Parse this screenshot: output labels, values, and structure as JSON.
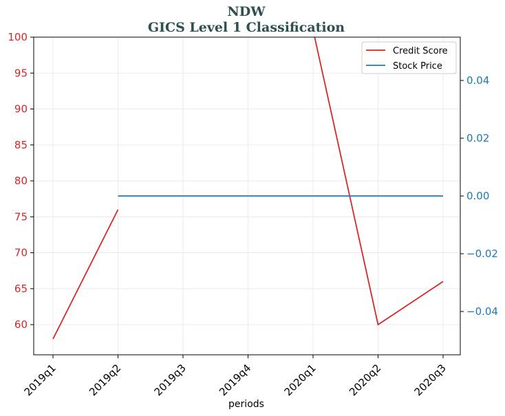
{
  "chart_data": {
    "type": "line",
    "title": "NDW",
    "subtitle": "GICS Level 1 Classification",
    "xlabel": "periods",
    "categories": [
      "2019q1",
      "2019q2",
      "2019q3",
      "2019q4",
      "2020q1",
      "2020q2",
      "2020q3"
    ],
    "left_axis": {
      "ylim": [
        55.8,
        100
      ],
      "ticks": [
        60,
        65,
        70,
        75,
        80,
        85,
        90,
        95,
        100
      ],
      "tick_labels": [
        "60",
        "65",
        "70",
        "75",
        "80",
        "85",
        "90",
        "95",
        "100"
      ],
      "color": "#d62728"
    },
    "right_axis": {
      "ylim": [
        -0.055,
        0.055
      ],
      "ticks": [
        -0.04,
        -0.02,
        0.0,
        0.02,
        0.04
      ],
      "tick_labels": [
        "−0.04",
        "−0.02",
        "0.00",
        "0.02",
        "0.04"
      ],
      "color": "#1f77b4"
    },
    "series": [
      {
        "name": "Credit Score",
        "axis": "left",
        "color": "#d62728",
        "values": [
          58,
          76,
          null,
          null,
          101,
          60,
          66
        ]
      },
      {
        "name": "Stock Price",
        "axis": "right",
        "color": "#1f77b4",
        "values": [
          null,
          0.0,
          0.0,
          0.0,
          0.0,
          0.0,
          0.0
        ]
      }
    ],
    "grid": true,
    "legend_position": "top-right"
  }
}
